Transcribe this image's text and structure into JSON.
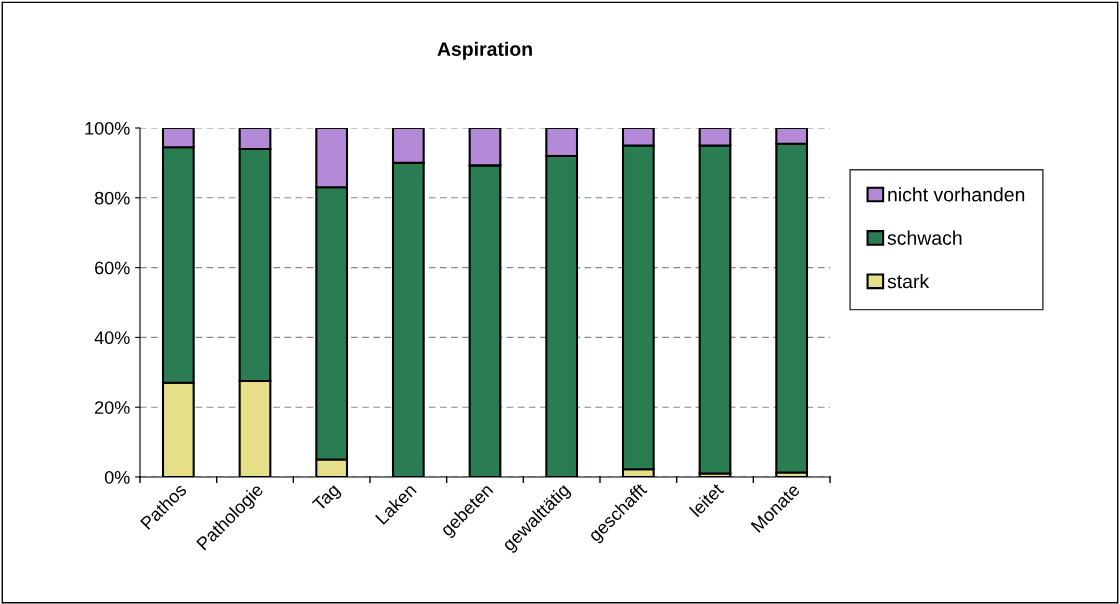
{
  "chart_data": {
    "type": "bar",
    "title": "Aspiration",
    "stacked": true,
    "categories": [
      "Pathos",
      "Pathologie",
      "Tag",
      "Laken",
      "gebeten",
      "gewalttätig",
      "geschafft",
      "leitet",
      "Monate"
    ],
    "series": [
      {
        "name": "stark",
        "color": "#e6df8a",
        "values": [
          27,
          27.5,
          5,
          null,
          null,
          null,
          2.2,
          1,
          1.3
        ]
      },
      {
        "name": "schwach",
        "color": "#2a7d52",
        "values": [
          67.5,
          66.5,
          78,
          90,
          89.3,
          92,
          92.8,
          94,
          94.2
        ]
      },
      {
        "name": "nicht vorhanden",
        "color": "#b48ad8",
        "values": [
          5.5,
          6,
          17,
          10,
          10.7,
          8,
          5,
          5,
          4.5
        ]
      }
    ],
    "ylim": [
      0,
      100
    ],
    "yticks": [
      {
        "value": 0,
        "label": "0%"
      },
      {
        "value": 20,
        "label": "20%"
      },
      {
        "value": 40,
        "label": "40%"
      },
      {
        "value": 60,
        "label": "60%"
      },
      {
        "value": 80,
        "label": "80%"
      },
      {
        "value": 100,
        "label": "100%"
      }
    ],
    "grid": "y",
    "legend": "right"
  }
}
